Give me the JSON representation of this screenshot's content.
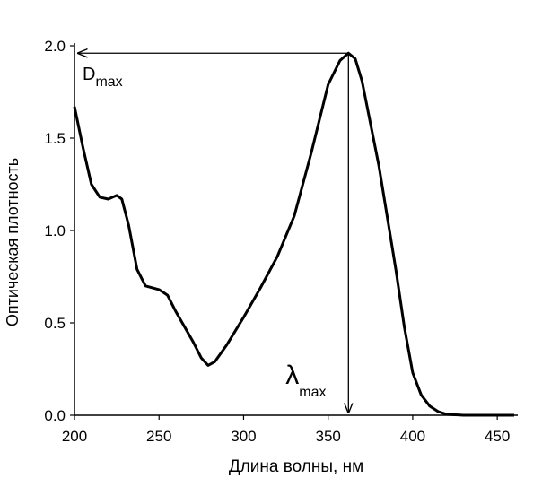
{
  "chart_data": {
    "type": "line",
    "x_label": "Длина волны, нм",
    "y_label": "Оптическая плотность",
    "x": [
      200,
      205,
      210,
      215,
      220,
      225,
      228,
      232,
      237,
      242,
      250,
      255,
      260,
      265,
      270,
      275,
      279,
      283,
      290,
      300,
      310,
      320,
      330,
      340,
      350,
      357,
      362,
      366,
      370,
      380,
      390,
      395,
      400,
      405,
      410,
      415,
      420,
      430,
      440,
      450,
      460
    ],
    "series": [
      {
        "color": "#000000",
        "values": [
          1.67,
          1.45,
          1.25,
          1.18,
          1.17,
          1.19,
          1.17,
          1.03,
          0.79,
          0.7,
          0.68,
          0.65,
          0.56,
          0.48,
          0.4,
          0.31,
          0.27,
          0.29,
          0.38,
          0.53,
          0.69,
          0.86,
          1.08,
          1.42,
          1.79,
          1.92,
          1.96,
          1.93,
          1.81,
          1.35,
          0.79,
          0.48,
          0.23,
          0.11,
          0.05,
          0.02,
          0.005,
          0,
          0,
          0,
          0
        ]
      }
    ],
    "xlim": [
      200,
      460
    ],
    "xticks": [
      200,
      250,
      300,
      350,
      400,
      450
    ],
    "ylim": [
      0,
      2
    ],
    "yticks": [
      {
        "value": 0,
        "label": "0.0"
      },
      0.5,
      {
        "value": 1,
        "label": "1.0"
      },
      1.5,
      {
        "value": 2,
        "label": "2.0"
      }
    ],
    "annotations": [
      {
        "text": "D",
        "sub": "max"
      },
      {
        "text": "λ",
        "sub": "max"
      }
    ]
  }
}
